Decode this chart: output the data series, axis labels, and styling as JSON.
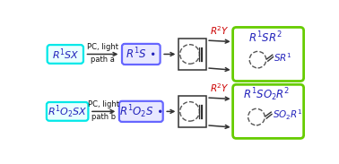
{
  "background": "#ffffff",
  "top_row": {
    "box1_border": "#00e8e8",
    "box2_border": "#6666ff",
    "arrow_label_line1": "PC, light",
    "arrow_label_line2": "path a",
    "r2y_label": "R$^2$Y",
    "result_box_border": "#66cc00"
  },
  "bottom_row": {
    "box1_border": "#00e8e8",
    "box2_border": "#6666ff",
    "arrow_label_line1": "PC, light",
    "arrow_label_line2": "path b",
    "r2y_label": "R$^2$Y",
    "result_box_border": "#66cc00"
  },
  "text_blue": "#2222bb",
  "text_red": "#cc0000",
  "text_black": "#111111",
  "arrow_color": "#333333",
  "dashed_circle_color": "#555555",
  "line_color": "#333333",
  "box1_fill": "#e8ffff",
  "box2_fill": "#e8e8ff",
  "result_fill": "#ffffff"
}
